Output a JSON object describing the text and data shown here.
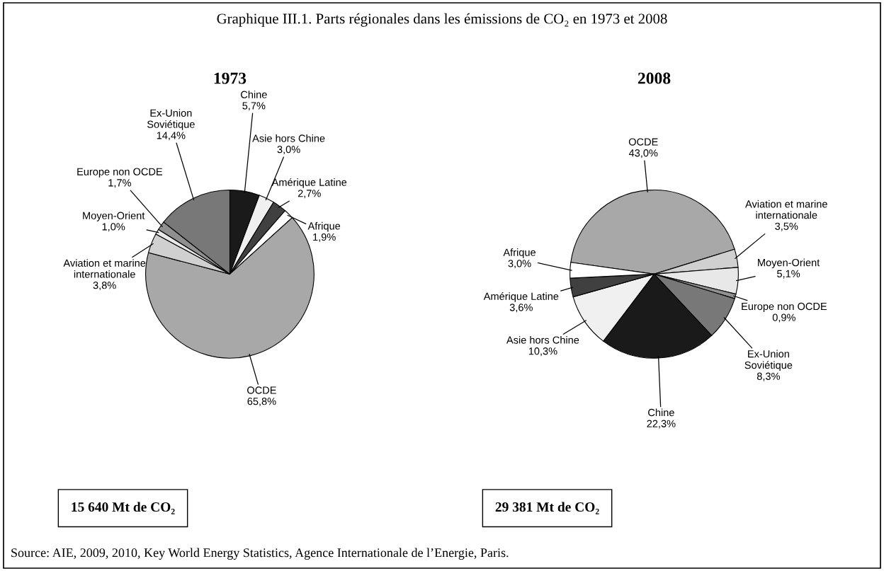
{
  "chart_data": [
    {
      "type": "pie",
      "title": "Graphique III.1. Parts régionales dans les émissions de CO₂ en 1973 et 2008",
      "subtitle": "1973",
      "categories": [
        "Chine",
        "Asie hors Chine",
        "Amérique Latine",
        "Afrique",
        "OCDE",
        "Aviation et marine\ninternationale",
        "Moyen-Orient",
        "Europe non OCDE",
        "Ex-Union\nSoviétique"
      ],
      "values": [
        5.7,
        3.0,
        2.7,
        1.9,
        65.8,
        3.8,
        1.0,
        1.7,
        14.4
      ],
      "value_labels": [
        "5,7%",
        "3,0%",
        "2,7%",
        "1,9%",
        "65,8%",
        "3,8%",
        "1,0%",
        "1,7%",
        "14,4%"
      ],
      "colors": [
        "#1a1a1a",
        "#f0f0f0",
        "#404040",
        "#ffffff",
        "#a8a8a8",
        "#d0d0d0",
        "#e8e8e8",
        "#909090",
        "#787878"
      ],
      "annotations": [
        "15 640 Mt de CO₂",
        "Source: AIE, 2009, 2010, Key World Energy Statistics, Agence Internationale de l’Energie, Paris."
      ]
    },
    {
      "type": "pie",
      "subtitle": "2008",
      "categories": [
        "OCDE",
        "Aviation et marine\ninternationale",
        "Moyen-Orient",
        "Europe non OCDE",
        "Ex-Union\nSoviétique",
        "Chine",
        "Asie hors Chine",
        "Amérique Latine",
        "Afrique"
      ],
      "values": [
        43.0,
        3.5,
        5.1,
        0.9,
        8.3,
        22.3,
        10.3,
        3.6,
        3.0
      ],
      "value_labels": [
        "43,0%",
        "3,5%",
        "5,1%",
        "0,9%",
        "8,3%",
        "22,3%",
        "10,3%",
        "3,6%",
        "3,0%"
      ],
      "colors": [
        "#a8a8a8",
        "#d0d0d0",
        "#e8e8e8",
        "#909090",
        "#787878",
        "#1a1a1a",
        "#f0f0f0",
        "#404040",
        "#ffffff"
      ],
      "annotations": [
        "29 381 Mt de CO₂"
      ]
    }
  ]
}
